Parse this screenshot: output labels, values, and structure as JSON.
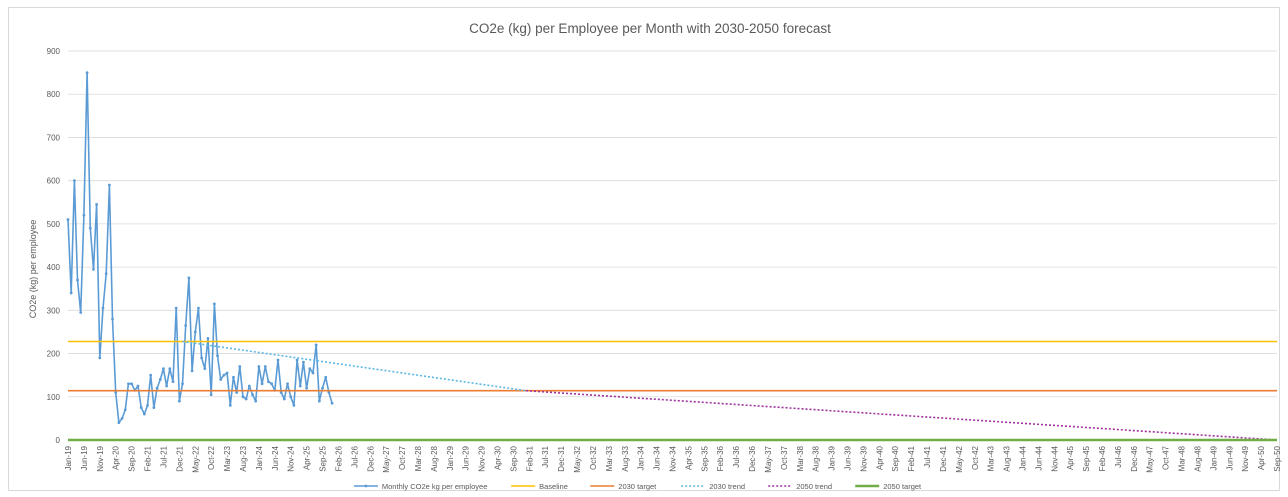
{
  "chart_data": {
    "type": "line",
    "title": "CO2e (kg) per Employee per Month with 2030-2050 forecast",
    "ylabel": "CO2e (kg) per employee",
    "xlabel": "",
    "ylim": [
      0,
      900
    ],
    "yticks": [
      0,
      100,
      200,
      300,
      400,
      500,
      600,
      700,
      800,
      900
    ],
    "grid": true,
    "legend_position": "bottom",
    "x_start": "Jan-19",
    "x_end": "Sep-50",
    "x_tick_labels": [
      "Jan-19",
      "Jun-19",
      "Nov-19",
      "Apr-20",
      "Sep-20",
      "Feb-21",
      "Jul-21",
      "Dec-21",
      "May-22",
      "Oct-22",
      "Mar-23",
      "Aug-23",
      "Jan-24",
      "Jun-24",
      "Nov-24",
      "Apr-25",
      "Sep-25",
      "Feb-26",
      "Jul-26",
      "Dec-26",
      "May-27",
      "Oct-27",
      "Mar-28",
      "Aug-28",
      "Jan-29",
      "Jun-29",
      "Nov-29",
      "Apr-30",
      "Sep-30",
      "Feb-31",
      "Jul-31",
      "Dec-31",
      "May-32",
      "Oct-32",
      "Mar-33",
      "Aug-33",
      "Jan-34",
      "Jun-34",
      "Nov-34",
      "Apr-35",
      "Sep-35",
      "Feb-36",
      "Jul-36",
      "Dec-36",
      "May-37",
      "Oct-37",
      "Mar-38",
      "Aug-38",
      "Jan-39",
      "Jun-39",
      "Nov-39",
      "Apr-40",
      "Sep-40",
      "Feb-41",
      "Jul-41",
      "Dec-41",
      "May-42",
      "Oct-42",
      "Mar-43",
      "Aug-43",
      "Jan-44",
      "Jun-44",
      "Nov-44",
      "Apr-45",
      "Sep-45",
      "Feb-46",
      "Jul-46",
      "Dec-46",
      "May-47",
      "Oct-47",
      "Mar-48",
      "Aug-48",
      "Jan-49",
      "Jun-49",
      "Nov-49",
      "Apr-50",
      "Sep-50"
    ],
    "series": [
      {
        "name": "Monthly CO2e kg per employee",
        "color": "#5b9bd5",
        "style": "line-markers",
        "start": "Jan-19",
        "values": [
          510,
          340,
          600,
          370,
          295,
          520,
          850,
          490,
          395,
          545,
          190,
          305,
          385,
          590,
          280,
          110,
          40,
          50,
          70,
          130,
          130,
          115,
          125,
          75,
          60,
          80,
          150,
          75,
          120,
          140,
          165,
          125,
          165,
          135,
          305,
          90,
          130,
          265,
          375,
          160,
          250,
          305,
          190,
          165,
          235,
          105,
          315,
          195,
          140,
          150,
          155,
          80,
          145,
          110,
          170,
          100,
          95,
          125,
          105,
          90,
          170,
          130,
          170,
          135,
          130,
          115,
          185,
          110,
          95,
          130,
          100,
          80,
          185,
          125,
          180,
          120,
          165,
          155,
          220,
          90,
          120,
          145,
          110,
          85
        ]
      },
      {
        "name": "Baseline",
        "color": "#ffc000",
        "style": "solid",
        "from": "Jan-19",
        "to": "Sep-50",
        "values": [
          228,
          228
        ]
      },
      {
        "name": "2030 target",
        "color": "#ed7d31",
        "style": "solid",
        "from": "Jan-19",
        "to": "Sep-50",
        "values": [
          114,
          114
        ]
      },
      {
        "name": "2030 trend",
        "color": "#5bb7e5",
        "style": "dotted",
        "from": "Jan-22",
        "to": "Jan-31",
        "values": [
          228,
          114
        ]
      },
      {
        "name": "2050 trend",
        "color": "#a0309f",
        "style": "dotted",
        "from": "Jan-31",
        "to": "Sep-50",
        "values": [
          114,
          0
        ]
      },
      {
        "name": "2050 target",
        "color": "#70ad47",
        "style": "solid-thick",
        "from": "Jan-19",
        "to": "Sep-50",
        "values": [
          0,
          0
        ]
      }
    ]
  }
}
